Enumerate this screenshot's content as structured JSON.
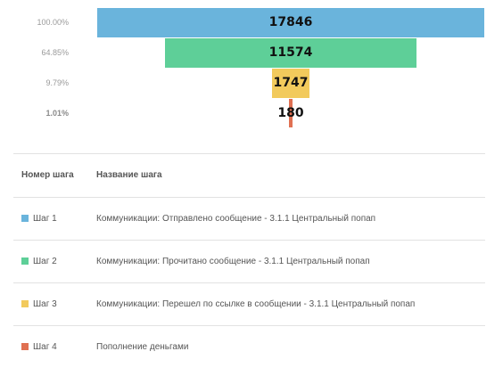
{
  "chart_data": {
    "type": "funnel",
    "steps": [
      {
        "value": 17846,
        "percent": "100.00%",
        "color": "#6ab4dc"
      },
      {
        "value": 11574,
        "percent": "64.85%",
        "color": "#5ecf98"
      },
      {
        "value": 1747,
        "percent": "9.79%",
        "color": "#f2ca5c"
      },
      {
        "value": 180,
        "percent": "1.01%",
        "color": "#e07052",
        "percent_bold": true
      }
    ]
  },
  "table": {
    "header": {
      "num": "Номер шага",
      "name": "Название шага"
    },
    "rows": [
      {
        "num": "Шаг 1",
        "name": "Коммуникации: Отправлено сообщение - 3.1.1 Центральный попап",
        "color": "#6ab4dc"
      },
      {
        "num": "Шаг 2",
        "name": "Коммуникации: Прочитано сообщение - 3.1.1 Центральный попап",
        "color": "#5ecf98"
      },
      {
        "num": "Шаг 3",
        "name": "Коммуникации: Перешел по ссылке в сообщении - 3.1.1 Центральный попап",
        "color": "#f2ca5c"
      },
      {
        "num": "Шаг 4",
        "name": "Пополнение деньгами",
        "color": "#e07052"
      }
    ]
  }
}
